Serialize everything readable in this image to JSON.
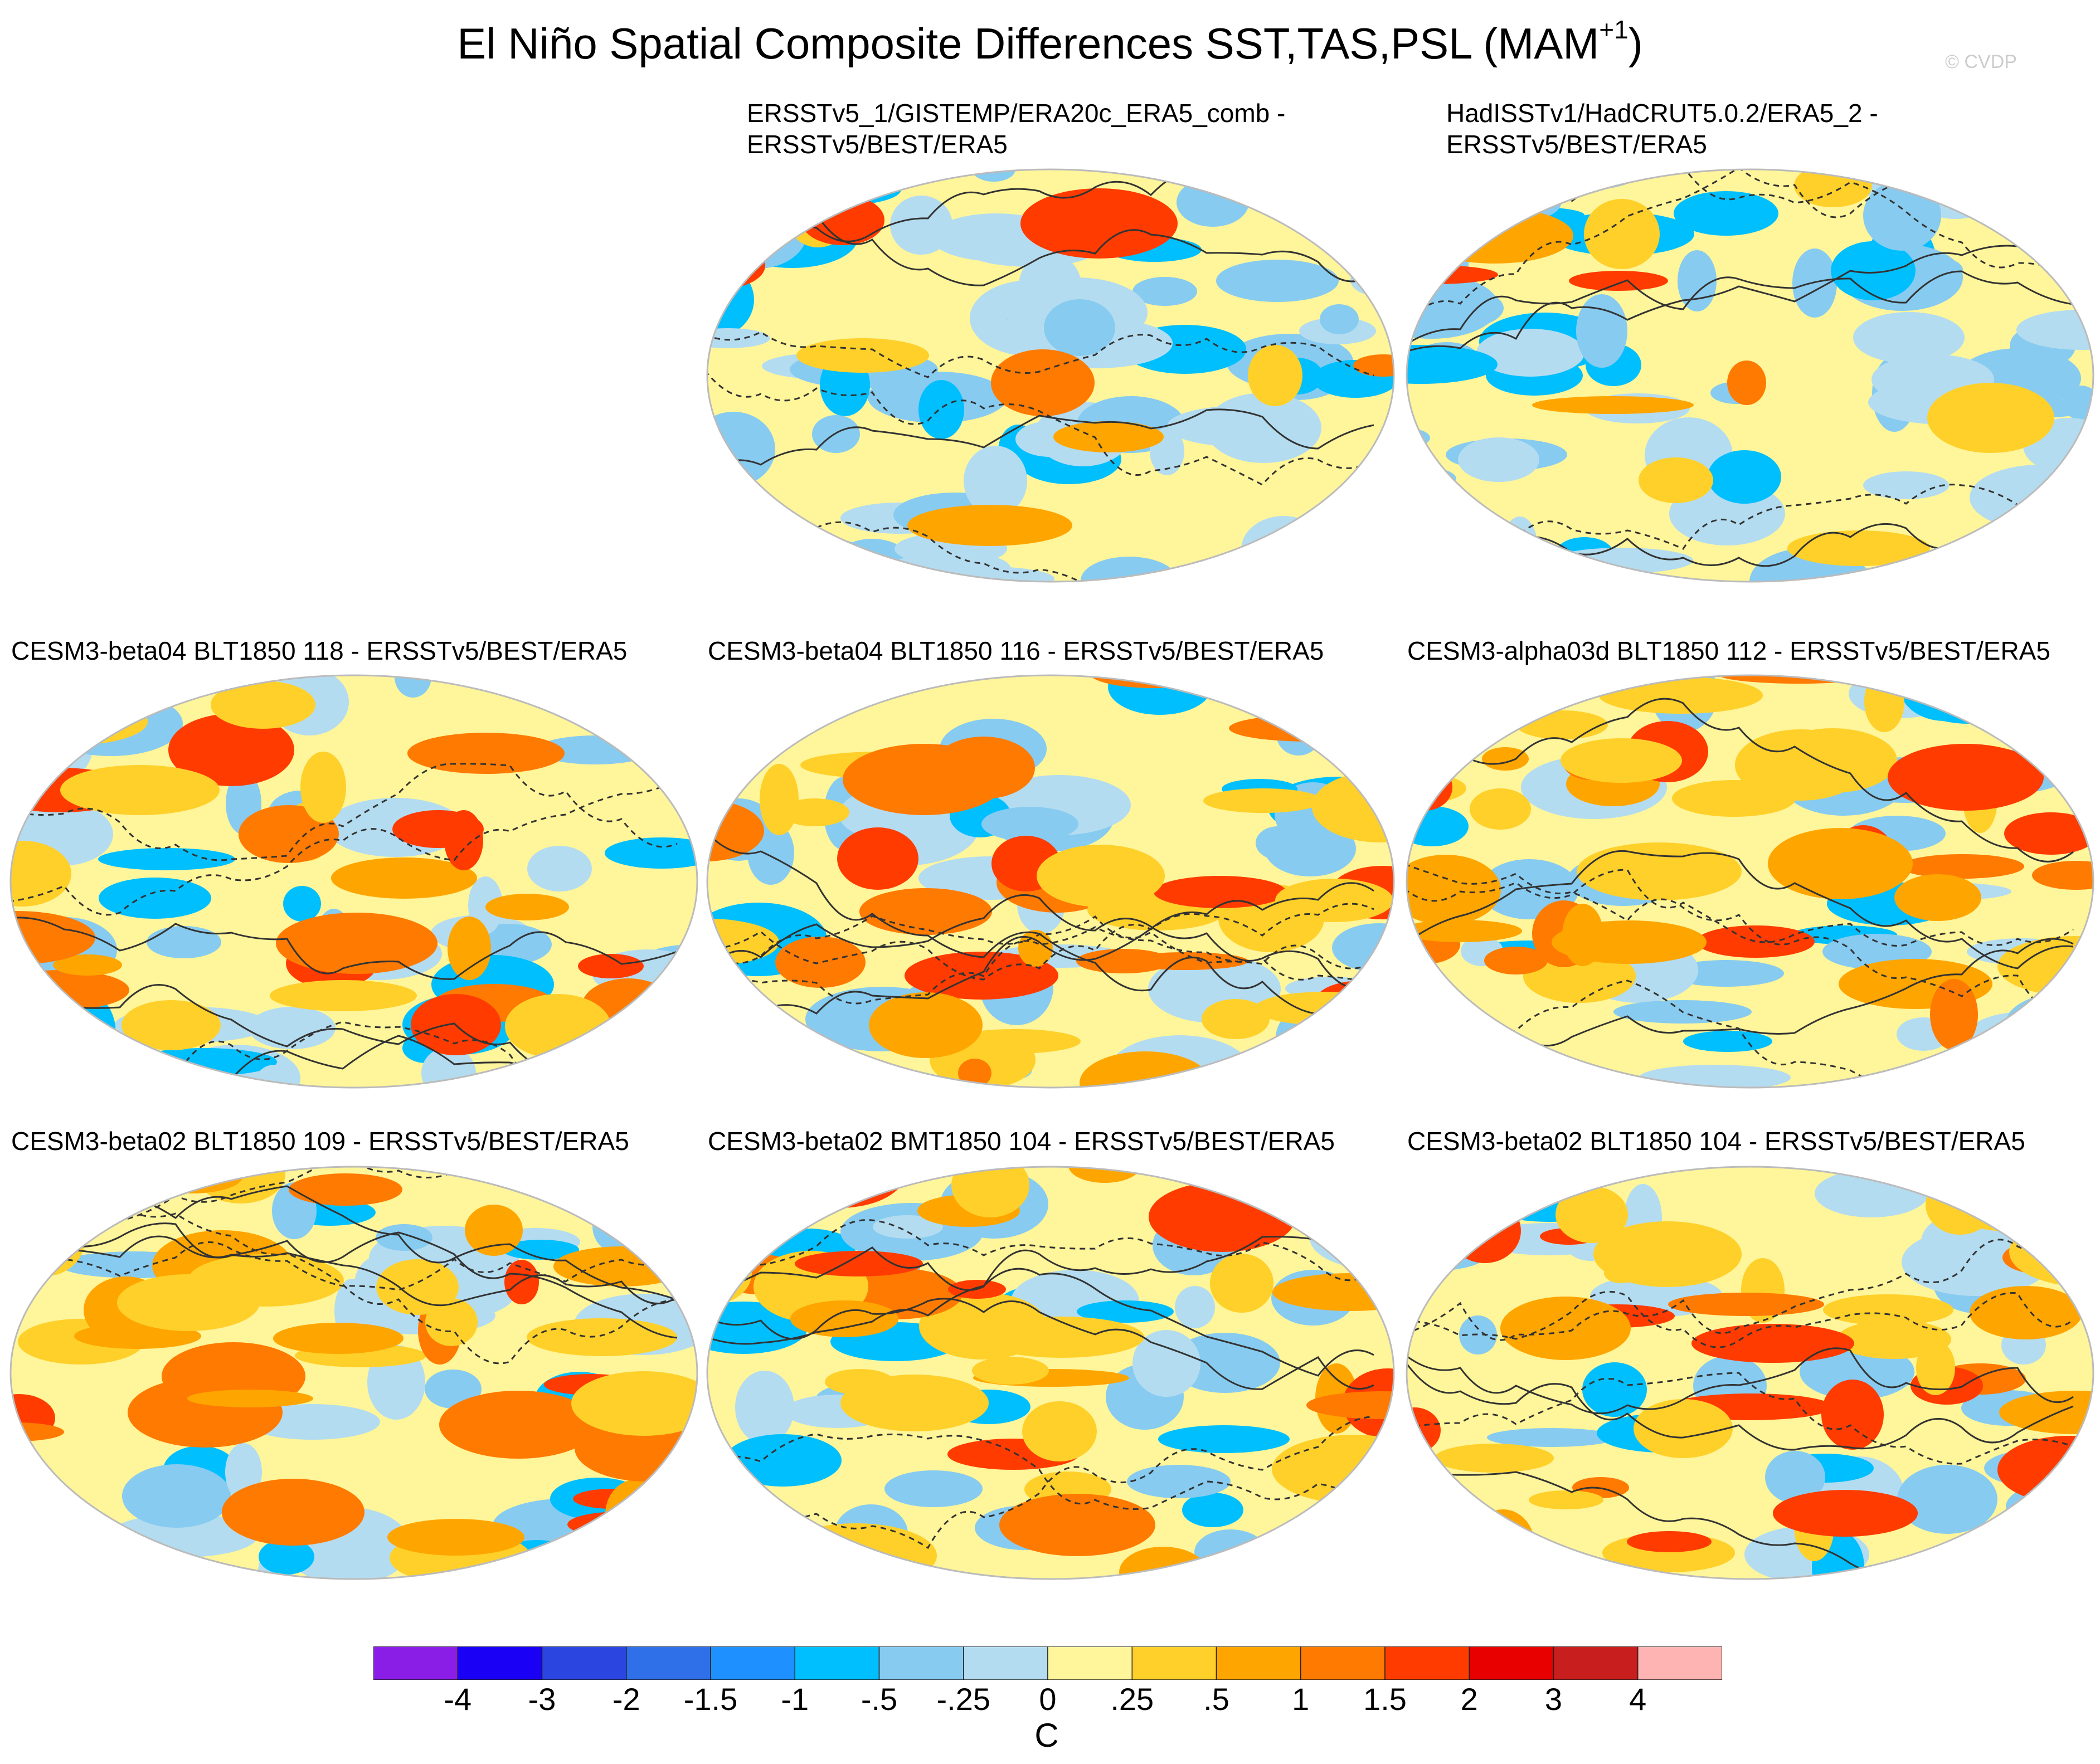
{
  "figure": {
    "title_main": "El Niño Spatial Composite Differences SST,TAS,PSL (MAM",
    "title_sup": "+1",
    "title_close": ")",
    "watermark": "© CVDP"
  },
  "panels": [
    {
      "title_line1": "ERSSTv5_1/GISTEMP/ERA20c_ERA5_comb -",
      "title_line2": "ERSSTv5/BEST/ERA5",
      "dominant": "cool"
    },
    {
      "title_line1": "HadISSTv1/HadCRUT5.0.2/ERA5_2 -",
      "title_line2": "ERSSTv5/BEST/ERA5",
      "dominant": "cool"
    },
    {
      "title_line1": "CESM3-beta04 BLT1850 118 - ERSSTv5/BEST/ERA5",
      "title_line2": "",
      "dominant": "mixed"
    },
    {
      "title_line1": "CESM3-beta04 BLT1850 116 - ERSSTv5/BEST/ERA5",
      "title_line2": "",
      "dominant": "warm"
    },
    {
      "title_line1": "CESM3-alpha03d BLT1850 112 - ERSSTv5/BEST/ERA5",
      "title_line2": "",
      "dominant": "warm"
    },
    {
      "title_line1": "CESM3-beta02 BLT1850 109 - ERSSTv5/BEST/ERA5",
      "title_line2": "",
      "dominant": "warm"
    },
    {
      "title_line1": "CESM3-beta02 BMT1850 104 - ERSSTv5/BEST/ERA5",
      "title_line2": "",
      "dominant": "warm"
    },
    {
      "title_line1": "CESM3-beta02 BLT1850 104 - ERSSTv5/BEST/ERA5",
      "title_line2": "",
      "dominant": "warm"
    }
  ],
  "colorbar": {
    "unit": "C",
    "labels": [
      "-4",
      "-3",
      "-2",
      "-1.5",
      "-1",
      "-.5",
      "-.25",
      "0",
      ".25",
      ".5",
      "1",
      "1.5",
      "2",
      "3",
      "4"
    ],
    "colors": [
      "#8a1ee6",
      "#1a00f5",
      "#2b45e0",
      "#2f6fe8",
      "#1e90ff",
      "#00bfff",
      "#87cbf0",
      "#b4dcf0",
      "#fff59a",
      "#ffd02a",
      "#ffa500",
      "#ff7a00",
      "#ff3b00",
      "#e80000",
      "#c81e1e",
      "#ffb4b4"
    ]
  }
}
